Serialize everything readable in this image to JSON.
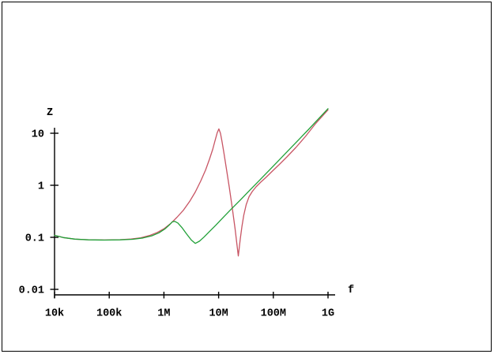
{
  "chart_data": {
    "type": "line",
    "title": "",
    "xlabel": "f",
    "ylabel": "Z",
    "x_scale": "log",
    "y_scale": "log",
    "x_range": [
      10000,
      1000000000.0
    ],
    "y_range": [
      0.01,
      30
    ],
    "grid": false,
    "legend": "none",
    "axis_color": "#000000",
    "background_color": "#ffffff",
    "x_ticks": [
      {
        "f": 10000.0,
        "label": "10k"
      },
      {
        "f": 100000.0,
        "label": "100k"
      },
      {
        "f": 1000000.0,
        "label": "1M"
      },
      {
        "f": 10000000.0,
        "label": "10M"
      },
      {
        "f": 100000000.0,
        "label": "100M"
      },
      {
        "f": 1000000000.0,
        "label": "1G"
      }
    ],
    "y_ticks": [
      {
        "z": 10,
        "label": "10"
      },
      {
        "z": 1,
        "label": "1"
      },
      {
        "z": 0.1,
        "label": "0.1"
      },
      {
        "z": 0.01,
        "label": "0.01"
      }
    ],
    "series": [
      {
        "name": "red",
        "color": "#c85564",
        "points": [
          [
            10000,
            0.109
          ],
          [
            14400,
            0.099
          ],
          [
            23700,
            0.0922
          ],
          [
            41800,
            0.0896
          ],
          [
            81300,
            0.0889
          ],
          [
            158000,
            0.0902
          ],
          [
            252000,
            0.0928
          ],
          [
            376000,
            0.0979
          ],
          [
            541000,
            0.108
          ],
          [
            755000,
            0.124
          ],
          [
            1020000.0,
            0.148
          ],
          [
            1330000.0,
            0.185
          ],
          [
            1740000.0,
            0.243
          ],
          [
            2280000.0,
            0.334
          ],
          [
            2960000.0,
            0.491
          ],
          [
            3750000.0,
            0.743
          ],
          [
            4720000.0,
            1.21
          ],
          [
            5780000.0,
            1.97
          ],
          [
            6790000.0,
            3.16
          ],
          [
            7780000.0,
            4.89
          ],
          [
            8560000.0,
            7.05
          ],
          [
            9430000.0,
            10.2
          ],
          [
            10100000.0,
            12.1
          ],
          [
            10800000.0,
            9.99
          ],
          [
            11500000.0,
            7.05
          ],
          [
            12500000.0,
            4.18
          ],
          [
            13800000.0,
            2.15
          ],
          [
            15600000.0,
            0.933
          ],
          [
            17800000.0,
            0.364
          ],
          [
            20000000.0,
            0.147
          ],
          [
            21800000.0,
            0.0681
          ],
          [
            22900000.0,
            0.0438
          ],
          [
            23700000.0,
            0.0591
          ],
          [
            24900000.0,
            0.0934
          ],
          [
            26600000.0,
            0.158
          ],
          [
            28800000.0,
            0.266
          ],
          [
            31900000.0,
            0.425
          ],
          [
            36000000.0,
            0.604
          ],
          [
            41100000.0,
            0.757
          ],
          [
            48300000.0,
            0.933
          ],
          [
            59000000.0,
            1.15
          ],
          [
            74500000.0,
            1.44
          ],
          [
            95900000.0,
            1.87
          ],
          [
            129000000.0,
            2.52
          ],
          [
            180000000.0,
            3.57
          ],
          [
            259000000.0,
            5.34
          ],
          [
            387000000.0,
            8.7
          ],
          [
            600000000.0,
            15.5
          ],
          [
            1000000000.0,
            28.2
          ]
        ]
      },
      {
        "name": "green",
        "color": "#21a038",
        "points": [
          [
            10000,
            0.109
          ],
          [
            14400,
            0.099
          ],
          [
            23700,
            0.0922
          ],
          [
            41800,
            0.0894
          ],
          [
            81300,
            0.0885
          ],
          [
            158000,
            0.0894
          ],
          [
            269000,
            0.0917
          ],
          [
            416000,
            0.0972
          ],
          [
            600000,
            0.107
          ],
          [
            810000,
            0.122
          ],
          [
            1050000.0,
            0.146
          ],
          [
            1290000.0,
            0.178
          ],
          [
            1420000.0,
            0.198
          ],
          [
            1570000.0,
            0.203
          ],
          [
            1800000.0,
            0.188
          ],
          [
            2120000.0,
            0.155
          ],
          [
            2580000.0,
            0.117
          ],
          [
            3160000.0,
            0.0888
          ],
          [
            3750000.0,
            0.0765
          ],
          [
            4440000.0,
            0.084
          ],
          [
            5400000.0,
            0.101
          ],
          [
            6800000.0,
            0.129
          ],
          [
            8900000.0,
            0.171
          ],
          [
            12000000.0,
            0.238
          ],
          [
            16700000.0,
            0.341
          ],
          [
            24200000.0,
            0.505
          ],
          [
            36000000.0,
            0.778
          ],
          [
            55600000.0,
            1.24
          ],
          [
            88400000.0,
            2.05
          ],
          [
            145000000.0,
            3.52
          ],
          [
            247000000.0,
            6.29
          ],
          [
            437000000.0,
            11.7
          ],
          [
            1000000000.0,
            29.7
          ]
        ]
      }
    ]
  }
}
